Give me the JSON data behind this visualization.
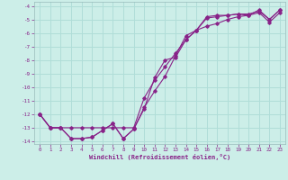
{
  "bg_color": "#cceee8",
  "grid_color": "#b0ddd8",
  "line_color": "#882288",
  "marker_color": "#882288",
  "xlabel": "Windchill (Refroidissement éolien,°C)",
  "xlabel_color": "#882288",
  "tick_color": "#882288",
  "xlim": [
    -0.5,
    23.5
  ],
  "ylim": [
    -14.2,
    -3.7
  ],
  "xticks": [
    0,
    1,
    2,
    3,
    4,
    5,
    6,
    7,
    8,
    9,
    10,
    11,
    12,
    13,
    14,
    15,
    16,
    17,
    18,
    19,
    20,
    21,
    22,
    23
  ],
  "yticks": [
    -14,
    -13,
    -12,
    -11,
    -10,
    -9,
    -8,
    -7,
    -6,
    -5,
    -4
  ],
  "line1_x": [
    0,
    1,
    2,
    3,
    4,
    5,
    6,
    7,
    8,
    9,
    10,
    11,
    12,
    13,
    14,
    15,
    16,
    17,
    18,
    19,
    20,
    21,
    22,
    23
  ],
  "line1_y": [
    -12.0,
    -13.0,
    -13.0,
    -13.8,
    -13.8,
    -13.7,
    -13.2,
    -12.7,
    -13.8,
    -13.1,
    -11.6,
    -9.3,
    -8.0,
    -7.8,
    -6.5,
    -5.8,
    -5.5,
    -5.3,
    -5.0,
    -4.8,
    -4.7,
    -4.5,
    -5.2,
    -4.5
  ],
  "line2_x": [
    0,
    1,
    2,
    3,
    4,
    5,
    6,
    7,
    8,
    9,
    10,
    11,
    12,
    13,
    14,
    15,
    16,
    17,
    18,
    19,
    20,
    21,
    22,
    23
  ],
  "line2_y": [
    -12.0,
    -13.0,
    -13.0,
    -13.0,
    -13.0,
    -13.0,
    -13.0,
    -13.0,
    -13.0,
    -13.0,
    -10.8,
    -9.5,
    -8.5,
    -7.5,
    -6.5,
    -5.8,
    -4.9,
    -4.8,
    -4.7,
    -4.6,
    -4.6,
    -4.4,
    -5.0,
    -4.3
  ],
  "line3_x": [
    0,
    1,
    2,
    3,
    4,
    5,
    6,
    7,
    8,
    9,
    10,
    11,
    12,
    13,
    14,
    15,
    16,
    17,
    18,
    19,
    20,
    21,
    22,
    23
  ],
  "line3_y": [
    -12.0,
    -13.0,
    -13.0,
    -13.8,
    -13.8,
    -13.7,
    -13.2,
    -12.7,
    -13.8,
    -13.1,
    -11.5,
    -10.3,
    -9.2,
    -7.7,
    -6.2,
    -5.8,
    -4.8,
    -4.7,
    -4.7,
    -4.6,
    -4.7,
    -4.3,
    -5.0,
    -4.3
  ]
}
